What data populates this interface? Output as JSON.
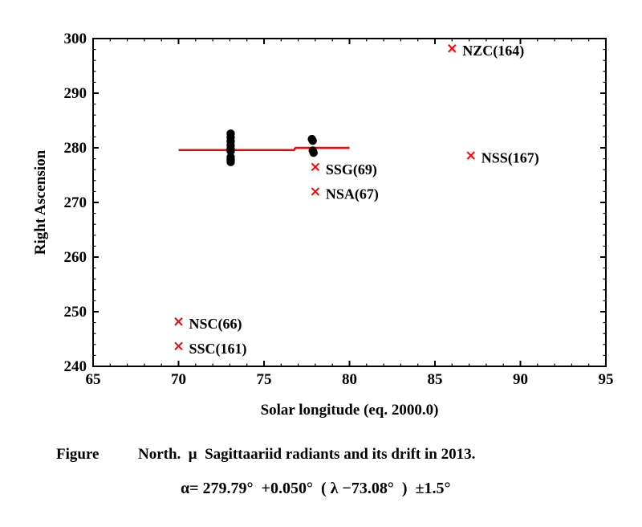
{
  "chart_data": {
    "type": "scatter",
    "xlabel": "Solar longitude (eq. 2000.0)",
    "ylabel": "Right Ascension",
    "xlim": [
      65,
      95
    ],
    "ylim": [
      240,
      300
    ],
    "xticks": [
      65,
      70,
      75,
      80,
      85,
      90,
      95
    ],
    "yticks": [
      240,
      250,
      260,
      270,
      280,
      290,
      300
    ],
    "grid": false,
    "colors": {
      "points": "#000000",
      "annotations": "#ff0000",
      "drift": "#ff0000"
    },
    "observed_points": [
      {
        "x": 73.05,
        "y": 282.6
      },
      {
        "x": 73.05,
        "y": 281.9
      },
      {
        "x": 73.05,
        "y": 281.2
      },
      {
        "x": 73.05,
        "y": 280.5
      },
      {
        "x": 73.05,
        "y": 279.8
      },
      {
        "x": 73.05,
        "y": 279.4
      },
      {
        "x": 73.05,
        "y": 278.3
      },
      {
        "x": 73.05,
        "y": 277.8
      },
      {
        "x": 73.05,
        "y": 277.4
      },
      {
        "x": 77.8,
        "y": 281.6
      },
      {
        "x": 77.85,
        "y": 281.3
      },
      {
        "x": 77.85,
        "y": 279.5
      },
      {
        "x": 77.9,
        "y": 279.1
      }
    ],
    "drift_segments": [
      {
        "x": [
          70.0,
          76.8
        ],
        "y": [
          279.6,
          279.6
        ]
      },
      {
        "x": [
          76.8,
          80.0
        ],
        "y": [
          280.0,
          280.0
        ]
      }
    ],
    "annotations": [
      {
        "label": "NZC(164)",
        "x": 86.0,
        "y": 298.2
      },
      {
        "label": "NSS(167)",
        "x": 87.1,
        "y": 278.6
      },
      {
        "label": "SSG(69)",
        "x": 78.0,
        "y": 276.5
      },
      {
        "label": "NSA(67)",
        "x": 78.0,
        "y": 272.0
      },
      {
        "label": "NSC(66)",
        "x": 70.0,
        "y": 248.2
      },
      {
        "label": "SSC(161)",
        "x": 70.0,
        "y": 243.7
      }
    ]
  },
  "caption": {
    "label": "Figure",
    "title": "North.  μ  Sagittaariid radiants and its drift in 2013.",
    "formula": "α= 279.79°  +0.050°  ( λ −73.08°  )  ±1.5°"
  }
}
